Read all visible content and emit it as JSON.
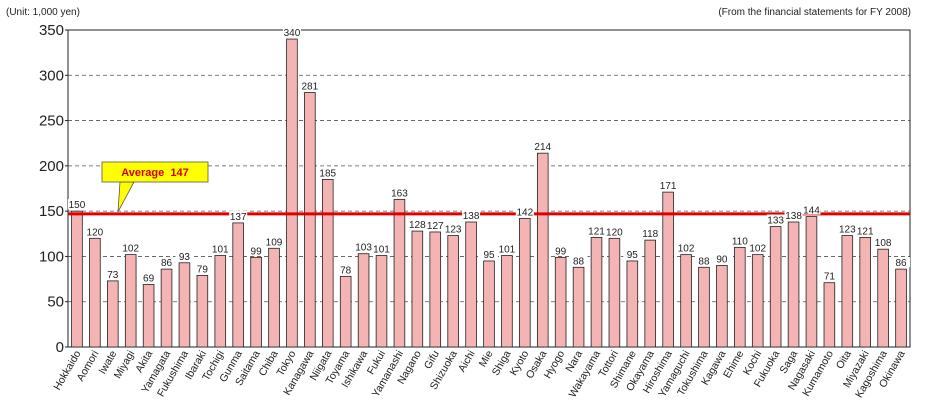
{
  "header": {
    "unit_note": "(Unit: 1,000 yen)",
    "source_note": "(From the financial statements for FY 2008)"
  },
  "chart_data": {
    "type": "bar",
    "title": "",
    "xlabel": "",
    "ylabel": "",
    "ylim": [
      0,
      350
    ],
    "yticks": [
      0,
      50,
      100,
      150,
      200,
      250,
      300,
      350
    ],
    "grid": "horizontal dashed",
    "categories": [
      "Hokkaido",
      "Aomori",
      "Iwate",
      "Miyagi",
      "Akita",
      "Yamagata",
      "Fukushima",
      "Ibaraki",
      "Tochigi",
      "Gunma",
      "Saitama",
      "Chiba",
      "Tokyo",
      "Kanagawa",
      "Niigata",
      "Toyama",
      "Ishikawa",
      "Fukui",
      "Yamanashi",
      "Nagano",
      "Gifu",
      "Shizuoka",
      "Aichi",
      "Mie",
      "Shiga",
      "Kyoto",
      "Osaka",
      "Hyogo",
      "Nara",
      "Wakayama",
      "Tottori",
      "Shimane",
      "Okayama",
      "Hiroshima",
      "Yamaguchi",
      "Tokushima",
      "Kagawa",
      "Ehime",
      "Kochi",
      "Fukuoka",
      "Saga",
      "Nagasaki",
      "Kumamoto",
      "Oita",
      "Miyazaki",
      "Kagoshima",
      "Okinawa"
    ],
    "values": [
      150,
      120,
      73,
      102,
      69,
      86,
      93,
      79,
      101,
      137,
      99,
      109,
      340,
      281,
      185,
      78,
      103,
      101,
      163,
      128,
      127,
      123,
      138,
      95,
      101,
      142,
      214,
      99,
      88,
      121,
      120,
      95,
      118,
      171,
      102,
      88,
      90,
      110,
      102,
      133,
      138,
      144,
      71,
      123,
      121,
      108,
      86
    ],
    "average": {
      "value": 147,
      "label": "Average  147"
    },
    "colors": {
      "bar_fill": "#f4b4b4",
      "bar_stroke": "#222222",
      "average_line": "#e00000",
      "callout_fill": "#ffff00"
    }
  }
}
